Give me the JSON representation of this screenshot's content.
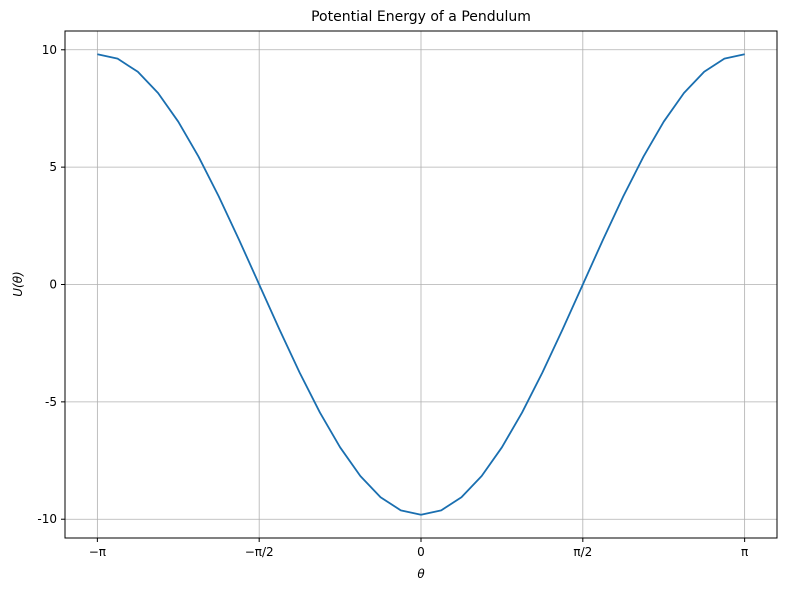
{
  "chart_data": {
    "type": "line",
    "title": "Potential Energy of a Pendulum",
    "xlabel": "θ",
    "ylabel": "U(θ)",
    "xlim": [
      -3.4558,
      3.4558
    ],
    "ylim": [
      -10.8,
      10.8
    ],
    "grid": true,
    "x_ticks": [
      {
        "value": -3.14159,
        "label": "−π"
      },
      {
        "value": -1.5708,
        "label": "−π/2"
      },
      {
        "value": 0,
        "label": "0"
      },
      {
        "value": 1.5708,
        "label": "π/2"
      },
      {
        "value": 3.14159,
        "label": "π"
      }
    ],
    "y_ticks": [
      {
        "value": 10,
        "label": "10"
      },
      {
        "value": 5,
        "label": "5"
      },
      {
        "value": 0,
        "label": "0"
      },
      {
        "value": -5,
        "label": "-5"
      },
      {
        "value": -10,
        "label": "-10"
      }
    ],
    "series": [
      {
        "color": "#1a6fb0",
        "x": [
          -3.14159,
          -2.94524,
          -2.74889,
          -2.55254,
          -2.35619,
          -2.15984,
          -1.9635,
          -1.76715,
          -1.5708,
          -1.37445,
          -1.1781,
          -0.98175,
          -0.7854,
          -0.58905,
          -0.3927,
          -0.19635,
          0.0,
          0.19635,
          0.3927,
          0.58905,
          0.7854,
          0.98175,
          1.1781,
          1.37445,
          1.5708,
          1.76715,
          1.9635,
          2.15984,
          2.35619,
          2.55254,
          2.74889,
          2.94524,
          3.14159
        ],
        "y": [
          9.81,
          9.621,
          9.063,
          8.157,
          6.937,
          5.45,
          3.754,
          1.914,
          0.0,
          -1.914,
          -3.754,
          -5.45,
          -6.937,
          -8.157,
          -9.063,
          -9.621,
          -9.81,
          -9.621,
          -9.063,
          -8.157,
          -6.937,
          -5.45,
          -3.754,
          -1.914,
          0.0,
          1.914,
          3.754,
          5.45,
          6.937,
          8.157,
          9.063,
          9.621,
          9.81
        ]
      }
    ]
  }
}
